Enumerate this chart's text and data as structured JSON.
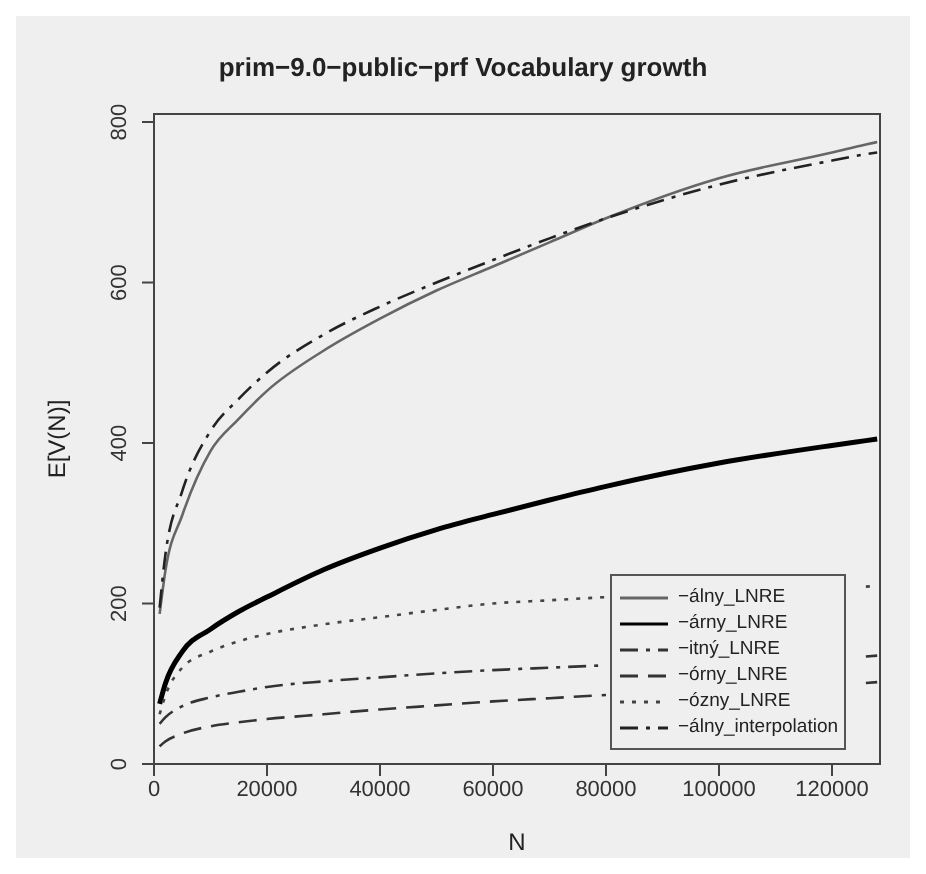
{
  "chart_data": {
    "type": "line",
    "title": "prim−9.0−public−prf Vocabulary growth",
    "xlabel": "N",
    "ylabel": "E[V(N)]",
    "x": [
      1000,
      2000,
      5000,
      10000,
      15000,
      20000,
      30000,
      40000,
      50000,
      60000,
      70000,
      80000,
      100000,
      120000,
      126000,
      128000
    ],
    "series": [
      {
        "name": "−álny_LNRE",
        "color": "#666666",
        "line_style": "solid",
        "values": [
          187,
          240,
          310,
          390,
          430,
          465,
          515,
          555,
          590,
          620,
          650,
          680,
          730,
          762,
          772,
          775
        ]
      },
      {
        "name": "−árny_LNRE",
        "color": "#000000",
        "line_style": "solid",
        "values": [
          75,
          100,
          140,
          168,
          190,
          208,
          242,
          269,
          292,
          311,
          329,
          346,
          375,
          397,
          403,
          405
        ]
      },
      {
        "name": "−itný_LNRE",
        "color": "#333333",
        "line_style": "dashdot",
        "values": [
          50,
          58,
          72,
          83,
          90,
          96,
          103,
          108,
          113,
          117,
          120,
          123,
          null,
          null,
          134,
          135
        ]
      },
      {
        "name": "−órny_LNRE",
        "color": "#333333",
        "line_style": "dashed",
        "values": [
          22,
          28,
          38,
          47,
          52,
          56,
          62,
          68,
          73,
          78,
          82,
          86,
          null,
          null,
          101,
          102
        ]
      },
      {
        "name": "−ózny_LNRE",
        "color": "#444444",
        "line_style": "dotted",
        "values": [
          62,
          85,
          120,
          140,
          153,
          162,
          174,
          183,
          192,
          200,
          204,
          208,
          null,
          null,
          221,
          222
        ]
      },
      {
        "name": "−álny_interpolation",
        "color": "#222222",
        "line_style": "dashdot",
        "values": [
          195,
          260,
          340,
          415,
          455,
          488,
          535,
          570,
          600,
          628,
          655,
          680,
          722,
          752,
          760,
          762
        ]
      }
    ],
    "xlim": [
      0,
      128500
    ],
    "xticks": [
      0,
      20000,
      40000,
      60000,
      80000,
      100000,
      120000
    ],
    "ylim": [
      0,
      810
    ],
    "yticks": [
      0,
      200,
      400,
      600,
      800
    ],
    "legend": "bottom right",
    "grid": false
  }
}
